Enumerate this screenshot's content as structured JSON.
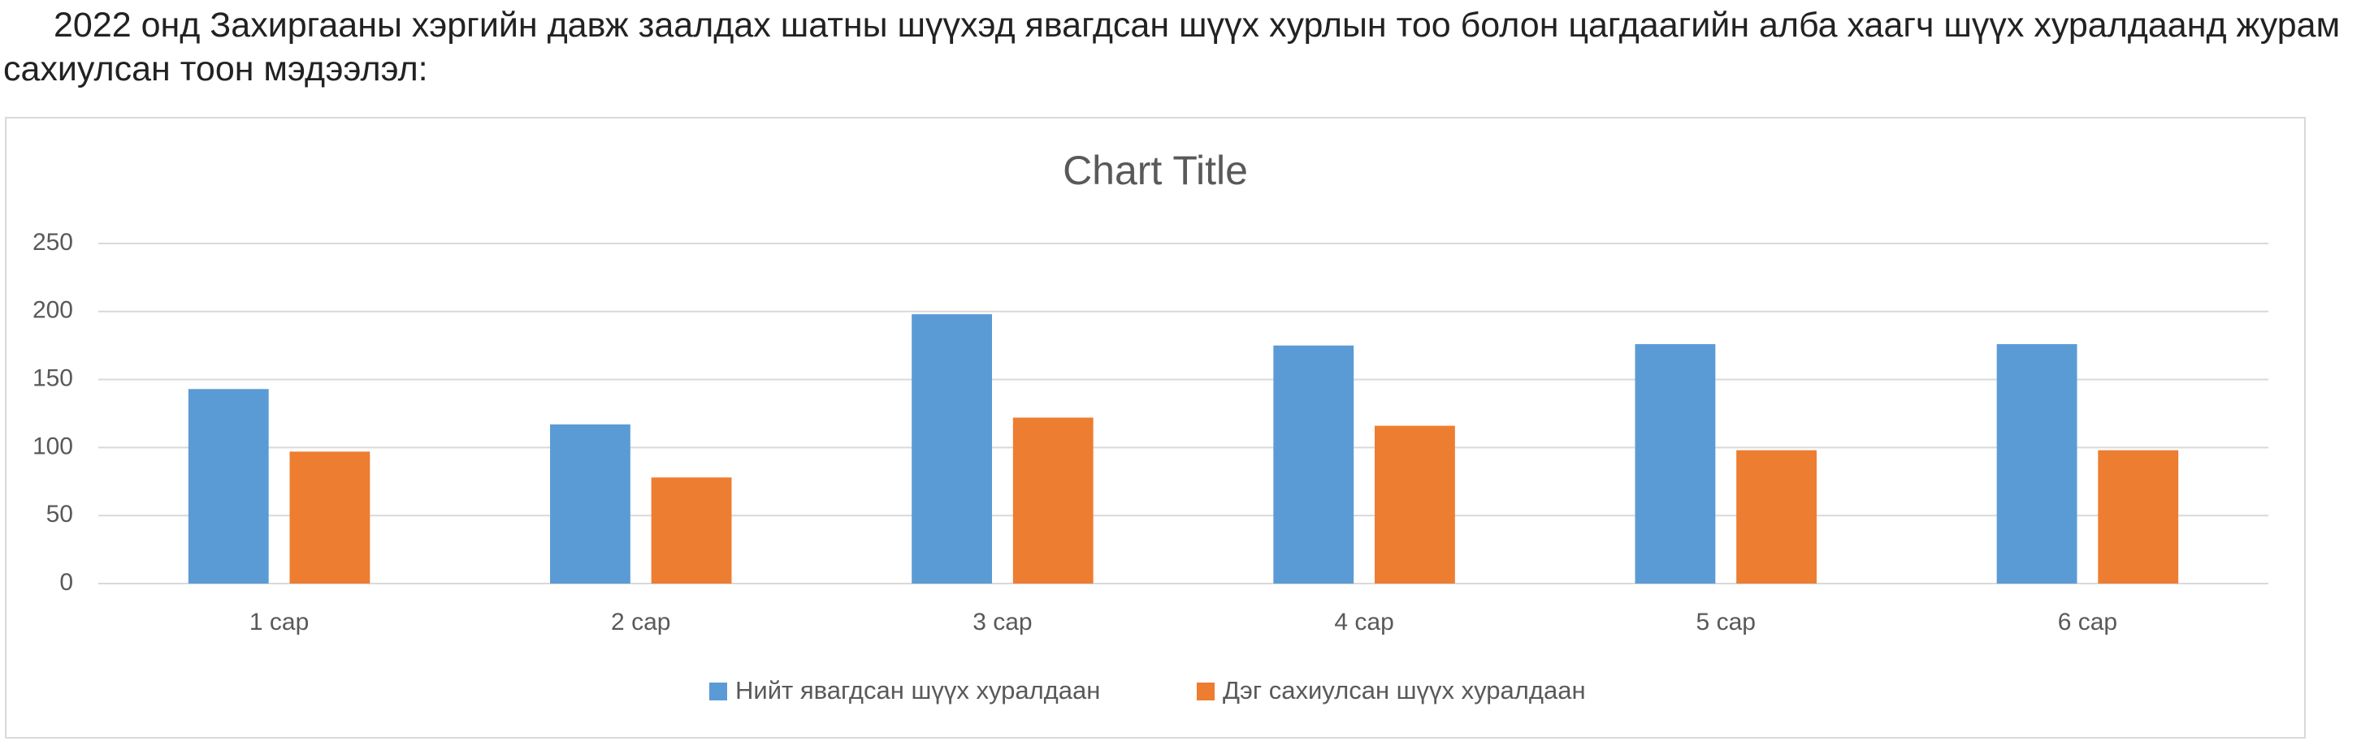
{
  "intro": "2022 онд Захиргааны хэргийн давж заалдах шатны шүүхэд явагдсан шүүх хурлын тоо болон цагдаагийн алба хаагч шүүх хуралдаанд журам сахиулсан тоон мэдээлэл:",
  "chart_data": {
    "type": "bar",
    "title": "Chart Title",
    "categories": [
      "1 сар",
      "2 сар",
      "3 сар",
      "4 сар",
      "5 сар",
      "6 сар"
    ],
    "series": [
      {
        "name": "Нийт явагдсан шүүх хуралдаан",
        "color": "#5b9bd5",
        "values": [
          143,
          117,
          198,
          175,
          176,
          176
        ]
      },
      {
        "name": "Дэг сахиулсан шүүх хуралдаан",
        "color": "#ed7d31",
        "values": [
          97,
          78,
          122,
          116,
          98,
          98
        ]
      }
    ],
    "ylim": [
      0,
      250
    ],
    "yticks": [
      0,
      50,
      100,
      150,
      200,
      250
    ],
    "grid": true,
    "legend": "bottom"
  }
}
